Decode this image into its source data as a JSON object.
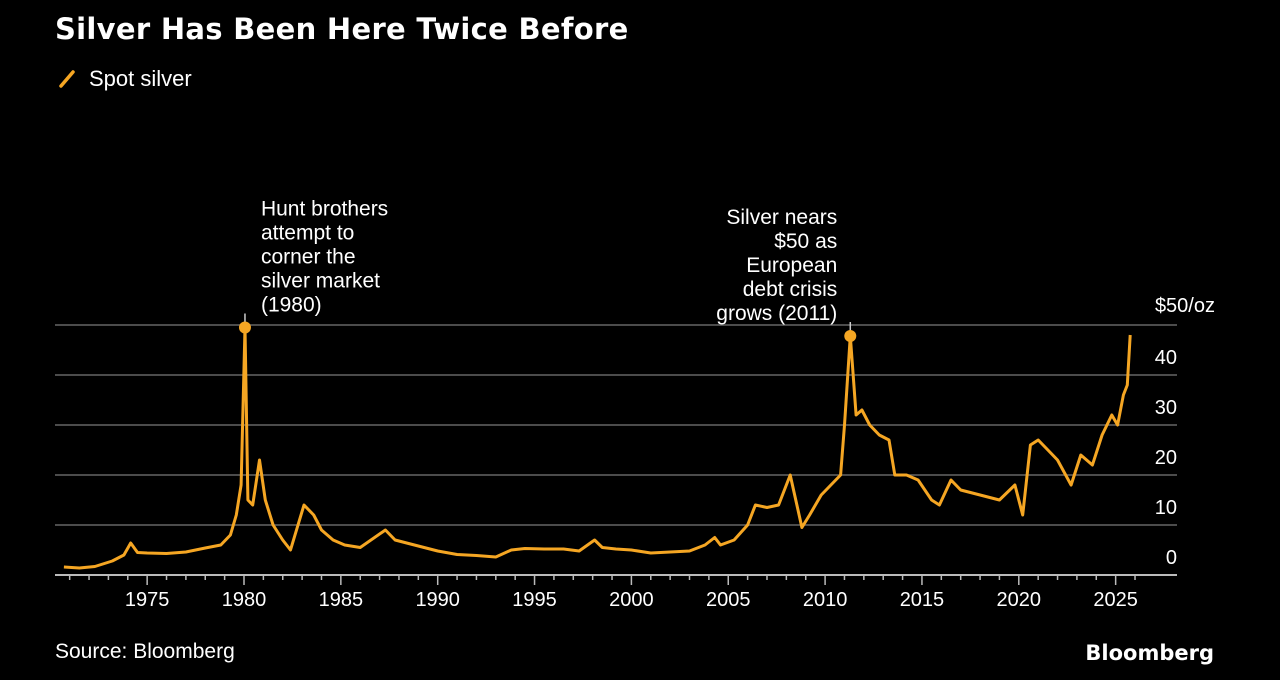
{
  "chart_data": {
    "type": "line",
    "title": "Silver Has Been Here Twice Before",
    "legend": [
      {
        "name": "Spot silver",
        "color": "#f5a623"
      }
    ],
    "legend_placement": "top-left",
    "source": "Source: Bloomberg",
    "brand": "Bloomberg",
    "y_unit_label": "$50/oz",
    "ylim": [
      0,
      50
    ],
    "yticks": [
      0,
      10,
      20,
      30,
      40,
      50
    ],
    "ytick_labels": [
      "0",
      "10",
      "20",
      "30",
      "40",
      "$50/oz"
    ],
    "xlim": [
      1970,
      2027
    ],
    "xticks": [
      1975,
      1980,
      1985,
      1990,
      1995,
      2000,
      2005,
      2010,
      2015,
      2020,
      2025
    ],
    "xtick_labels": [
      "1975",
      "1980",
      "1985",
      "1990",
      "1995",
      "2000",
      "2005",
      "2010",
      "2015",
      "2020",
      "2025"
    ],
    "grid": "horizontal",
    "axis_position": "right",
    "series": [
      {
        "name": "Spot silver",
        "color": "#f5a623",
        "x": [
          1970.7,
          1971.5,
          1972.3,
          1973.2,
          1973.8,
          1974.15,
          1974.5,
          1975,
          1976,
          1977,
          1978,
          1978.8,
          1979.3,
          1979.6,
          1979.85,
          1980.05,
          1980.2,
          1980.45,
          1980.8,
          1981.1,
          1981.5,
          1982,
          1982.4,
          1983.1,
          1983.6,
          1984,
          1984.6,
          1985.2,
          1986,
          1987.3,
          1987.8,
          1988.5,
          1989.3,
          1990,
          1991,
          1992,
          1993,
          1993.8,
          1994.5,
          1995.5,
          1996.5,
          1997.3,
          1998.1,
          1998.5,
          1999.2,
          2000,
          2001,
          2002,
          2003,
          2003.8,
          2004.3,
          2004.6,
          2005.3,
          2006,
          2006.4,
          2007,
          2007.6,
          2008.2,
          2008.8,
          2009.2,
          2009.8,
          2010.3,
          2010.8,
          2011.0,
          2011.3,
          2011.6,
          2011.9,
          2012.3,
          2012.8,
          2013.3,
          2013.6,
          2014.2,
          2014.8,
          2015.5,
          2015.9,
          2016.5,
          2017,
          2018,
          2019,
          2019.8,
          2020.2,
          2020.6,
          2021,
          2021.5,
          2022,
          2022.7,
          2023.2,
          2023.8,
          2024.3,
          2024.8,
          2025.1,
          2025.4,
          2025.6,
          2025.75
        ],
        "y": [
          1.6,
          1.4,
          1.7,
          2.8,
          4,
          6.4,
          4.5,
          4.4,
          4.3,
          4.6,
          5.4,
          6,
          8,
          12,
          18,
          49.5,
          15,
          14,
          23,
          15,
          10,
          7,
          5,
          14,
          12,
          9,
          7,
          6,
          5.5,
          9,
          7,
          6.3,
          5.5,
          4.8,
          4.1,
          3.9,
          3.6,
          5,
          5.3,
          5.2,
          5.2,
          4.8,
          7,
          5.5,
          5.2,
          5,
          4.4,
          4.6,
          4.8,
          6,
          7.5,
          6,
          7,
          10,
          14,
          13.5,
          14,
          20,
          9.5,
          12,
          16,
          18,
          20,
          30,
          47.8,
          32,
          33,
          30,
          28,
          27,
          20,
          20,
          19,
          15,
          14,
          19,
          17,
          16,
          15,
          18,
          12,
          26,
          27,
          25,
          23,
          18,
          24,
          22,
          28,
          32,
          30,
          36,
          38,
          48
        ]
      }
    ],
    "annotations": [
      {
        "x": 1980.05,
        "y": 49.5,
        "lines": [
          "Hunt brothers",
          "attempt to",
          "corner the",
          "silver market",
          "(1980)"
        ],
        "align": "left"
      },
      {
        "x": 2011.3,
        "y": 47.8,
        "lines": [
          "Silver nears",
          "$50 as",
          "European",
          "debt crisis",
          "grows (2011)"
        ],
        "align": "right"
      }
    ]
  }
}
